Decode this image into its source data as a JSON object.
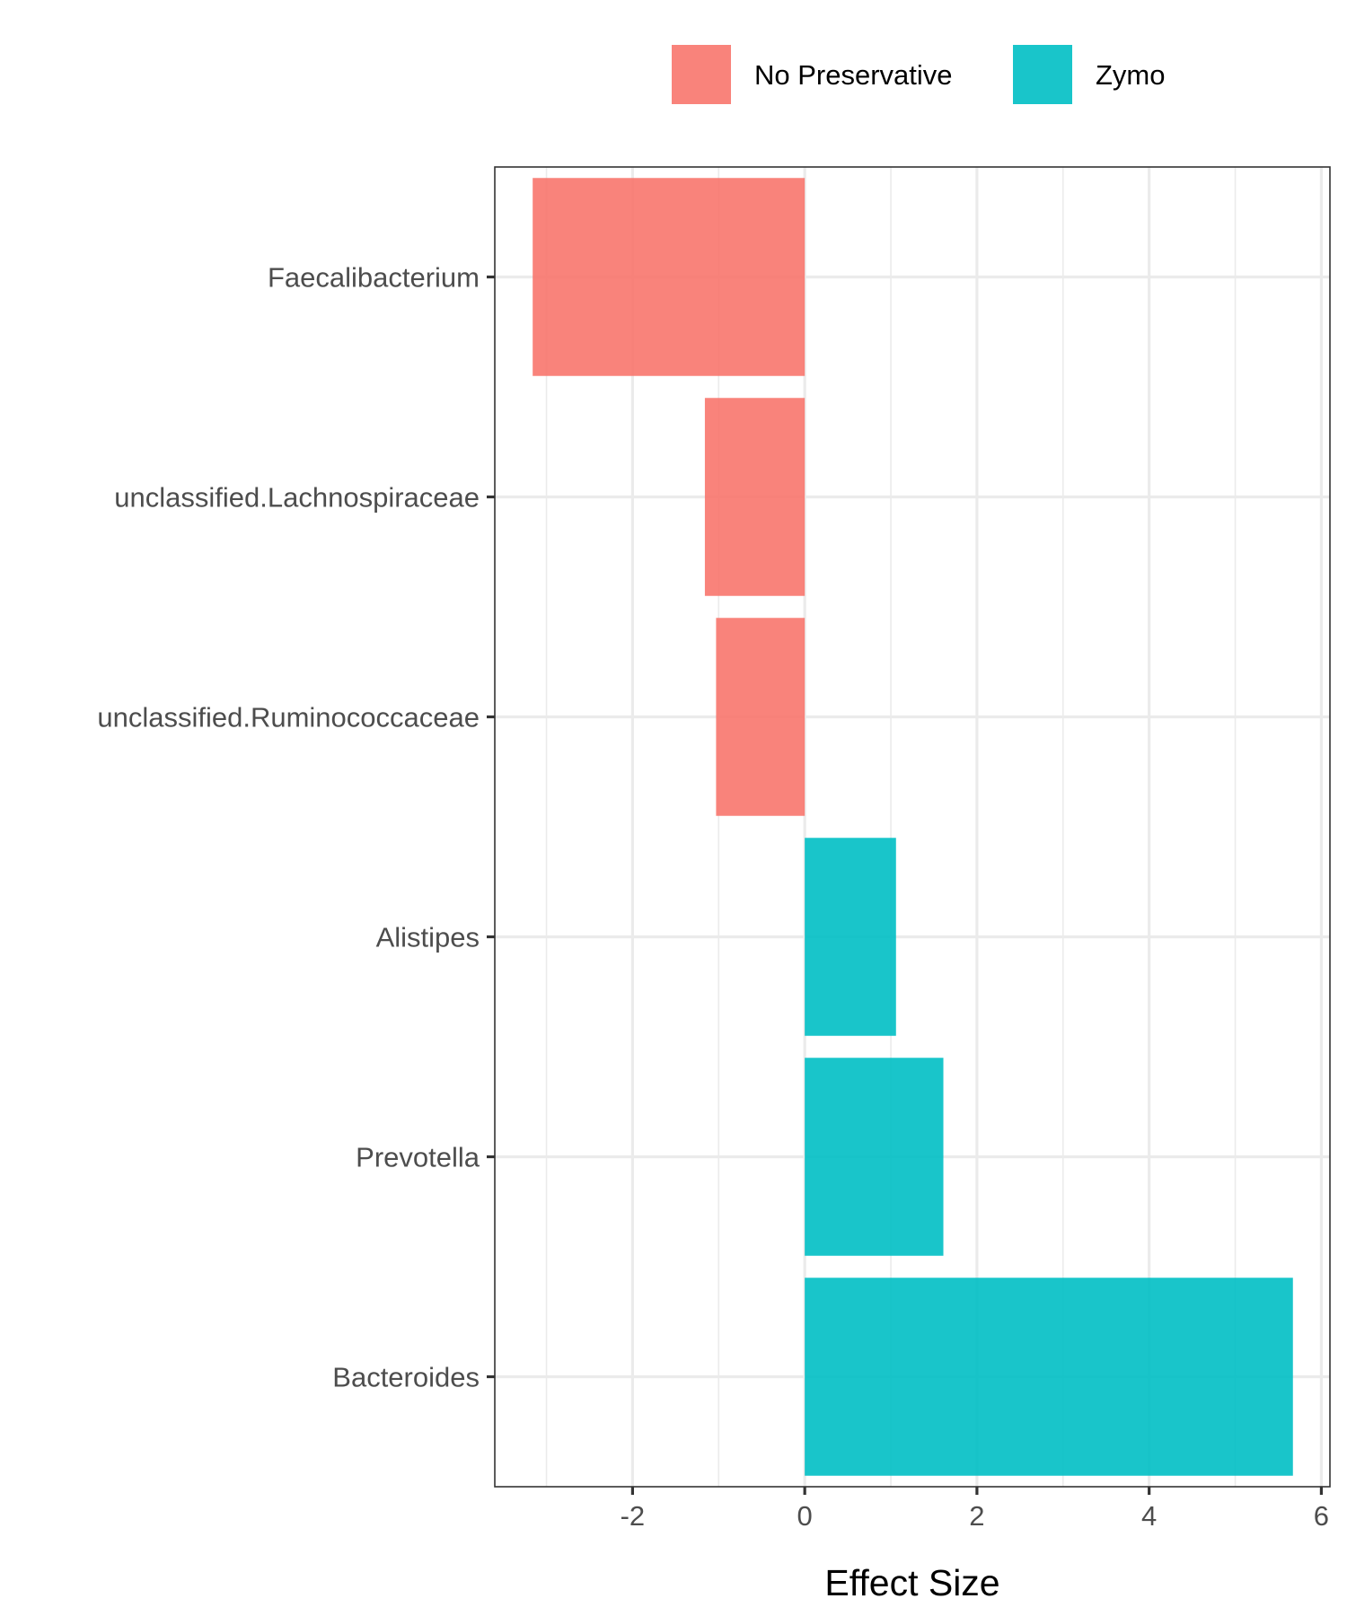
{
  "chart_data": {
    "type": "bar",
    "orientation": "horizontal",
    "categories": [
      "Faecalibacterium",
      "unclassified.Lachnospiraceae",
      "unclassified.Ruminococcaceae",
      "Alistipes",
      "Prevotella",
      "Bacteroides"
    ],
    "values": [
      -3.16,
      -1.16,
      -1.03,
      1.06,
      1.61,
      5.67
    ],
    "groups": [
      "No Preservative",
      "No Preservative",
      "No Preservative",
      "Zymo",
      "Zymo",
      "Zymo"
    ],
    "xlabel": "Effect Size",
    "ylabel": "",
    "xlim": [
      -3.6,
      6.1
    ],
    "xticks": [
      -2,
      0,
      2,
      4,
      6
    ],
    "xtick_labels": [
      "-2",
      "0",
      "2",
      "4",
      "6"
    ],
    "grid": true,
    "legend": {
      "position": "top",
      "entries": [
        {
          "label": "No Preservative",
          "color": "#F8766D"
        },
        {
          "label": "Zymo",
          "color": "#00BFC4"
        }
      ]
    }
  }
}
